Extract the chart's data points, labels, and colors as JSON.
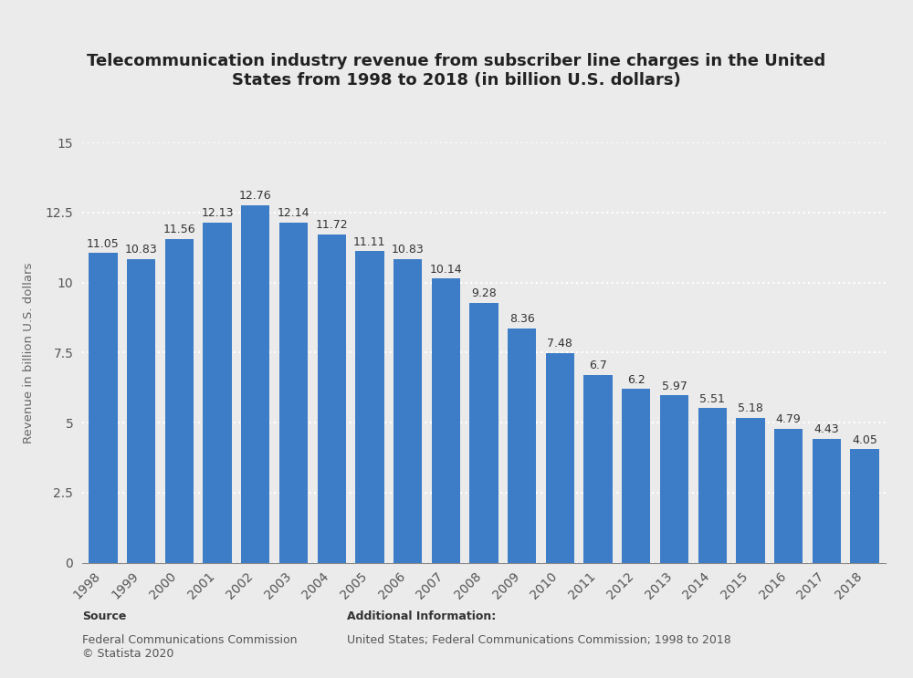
{
  "categories": [
    "1998",
    "1999",
    "2000",
    "2001",
    "2002",
    "2003",
    "2004",
    "2005",
    "2006",
    "2007",
    "2008",
    "2009",
    "2010",
    "2011",
    "2012",
    "2013",
    "2014",
    "2015",
    "2016",
    "2017",
    "2018"
  ],
  "values": [
    11.05,
    10.83,
    11.56,
    12.13,
    12.76,
    12.14,
    11.72,
    11.11,
    10.83,
    10.14,
    9.28,
    8.36,
    7.48,
    6.7,
    6.2,
    5.97,
    5.51,
    5.18,
    4.79,
    4.43,
    4.05
  ],
  "bar_color": "#3d7dc8",
  "title": "Telecommunication industry revenue from subscriber line charges in the United\nStates from 1998 to 2018 (in billion U.S. dollars)",
  "ylabel": "Revenue in billion U.S. dollars",
  "ylim": [
    0,
    15
  ],
  "yticks": [
    0,
    2.5,
    5,
    7.5,
    10,
    12.5,
    15
  ],
  "ytick_labels": [
    "0",
    "2.5",
    "5",
    "7.5",
    "10",
    "12.5",
    "15"
  ],
  "background_color": "#ebebeb",
  "plot_bg_color": "#ebebeb",
  "grid_color": "#ffffff",
  "source_label": "Source",
  "source_body": "Federal Communications Commission\n© Statista 2020",
  "additional_label": "Additional Information:",
  "additional_body": "United States; Federal Communications Commission; 1998 to 2018",
  "title_fontsize": 13,
  "label_fontsize": 9.5,
  "tick_fontsize": 10,
  "bar_label_fontsize": 9,
  "footer_fontsize": 9
}
